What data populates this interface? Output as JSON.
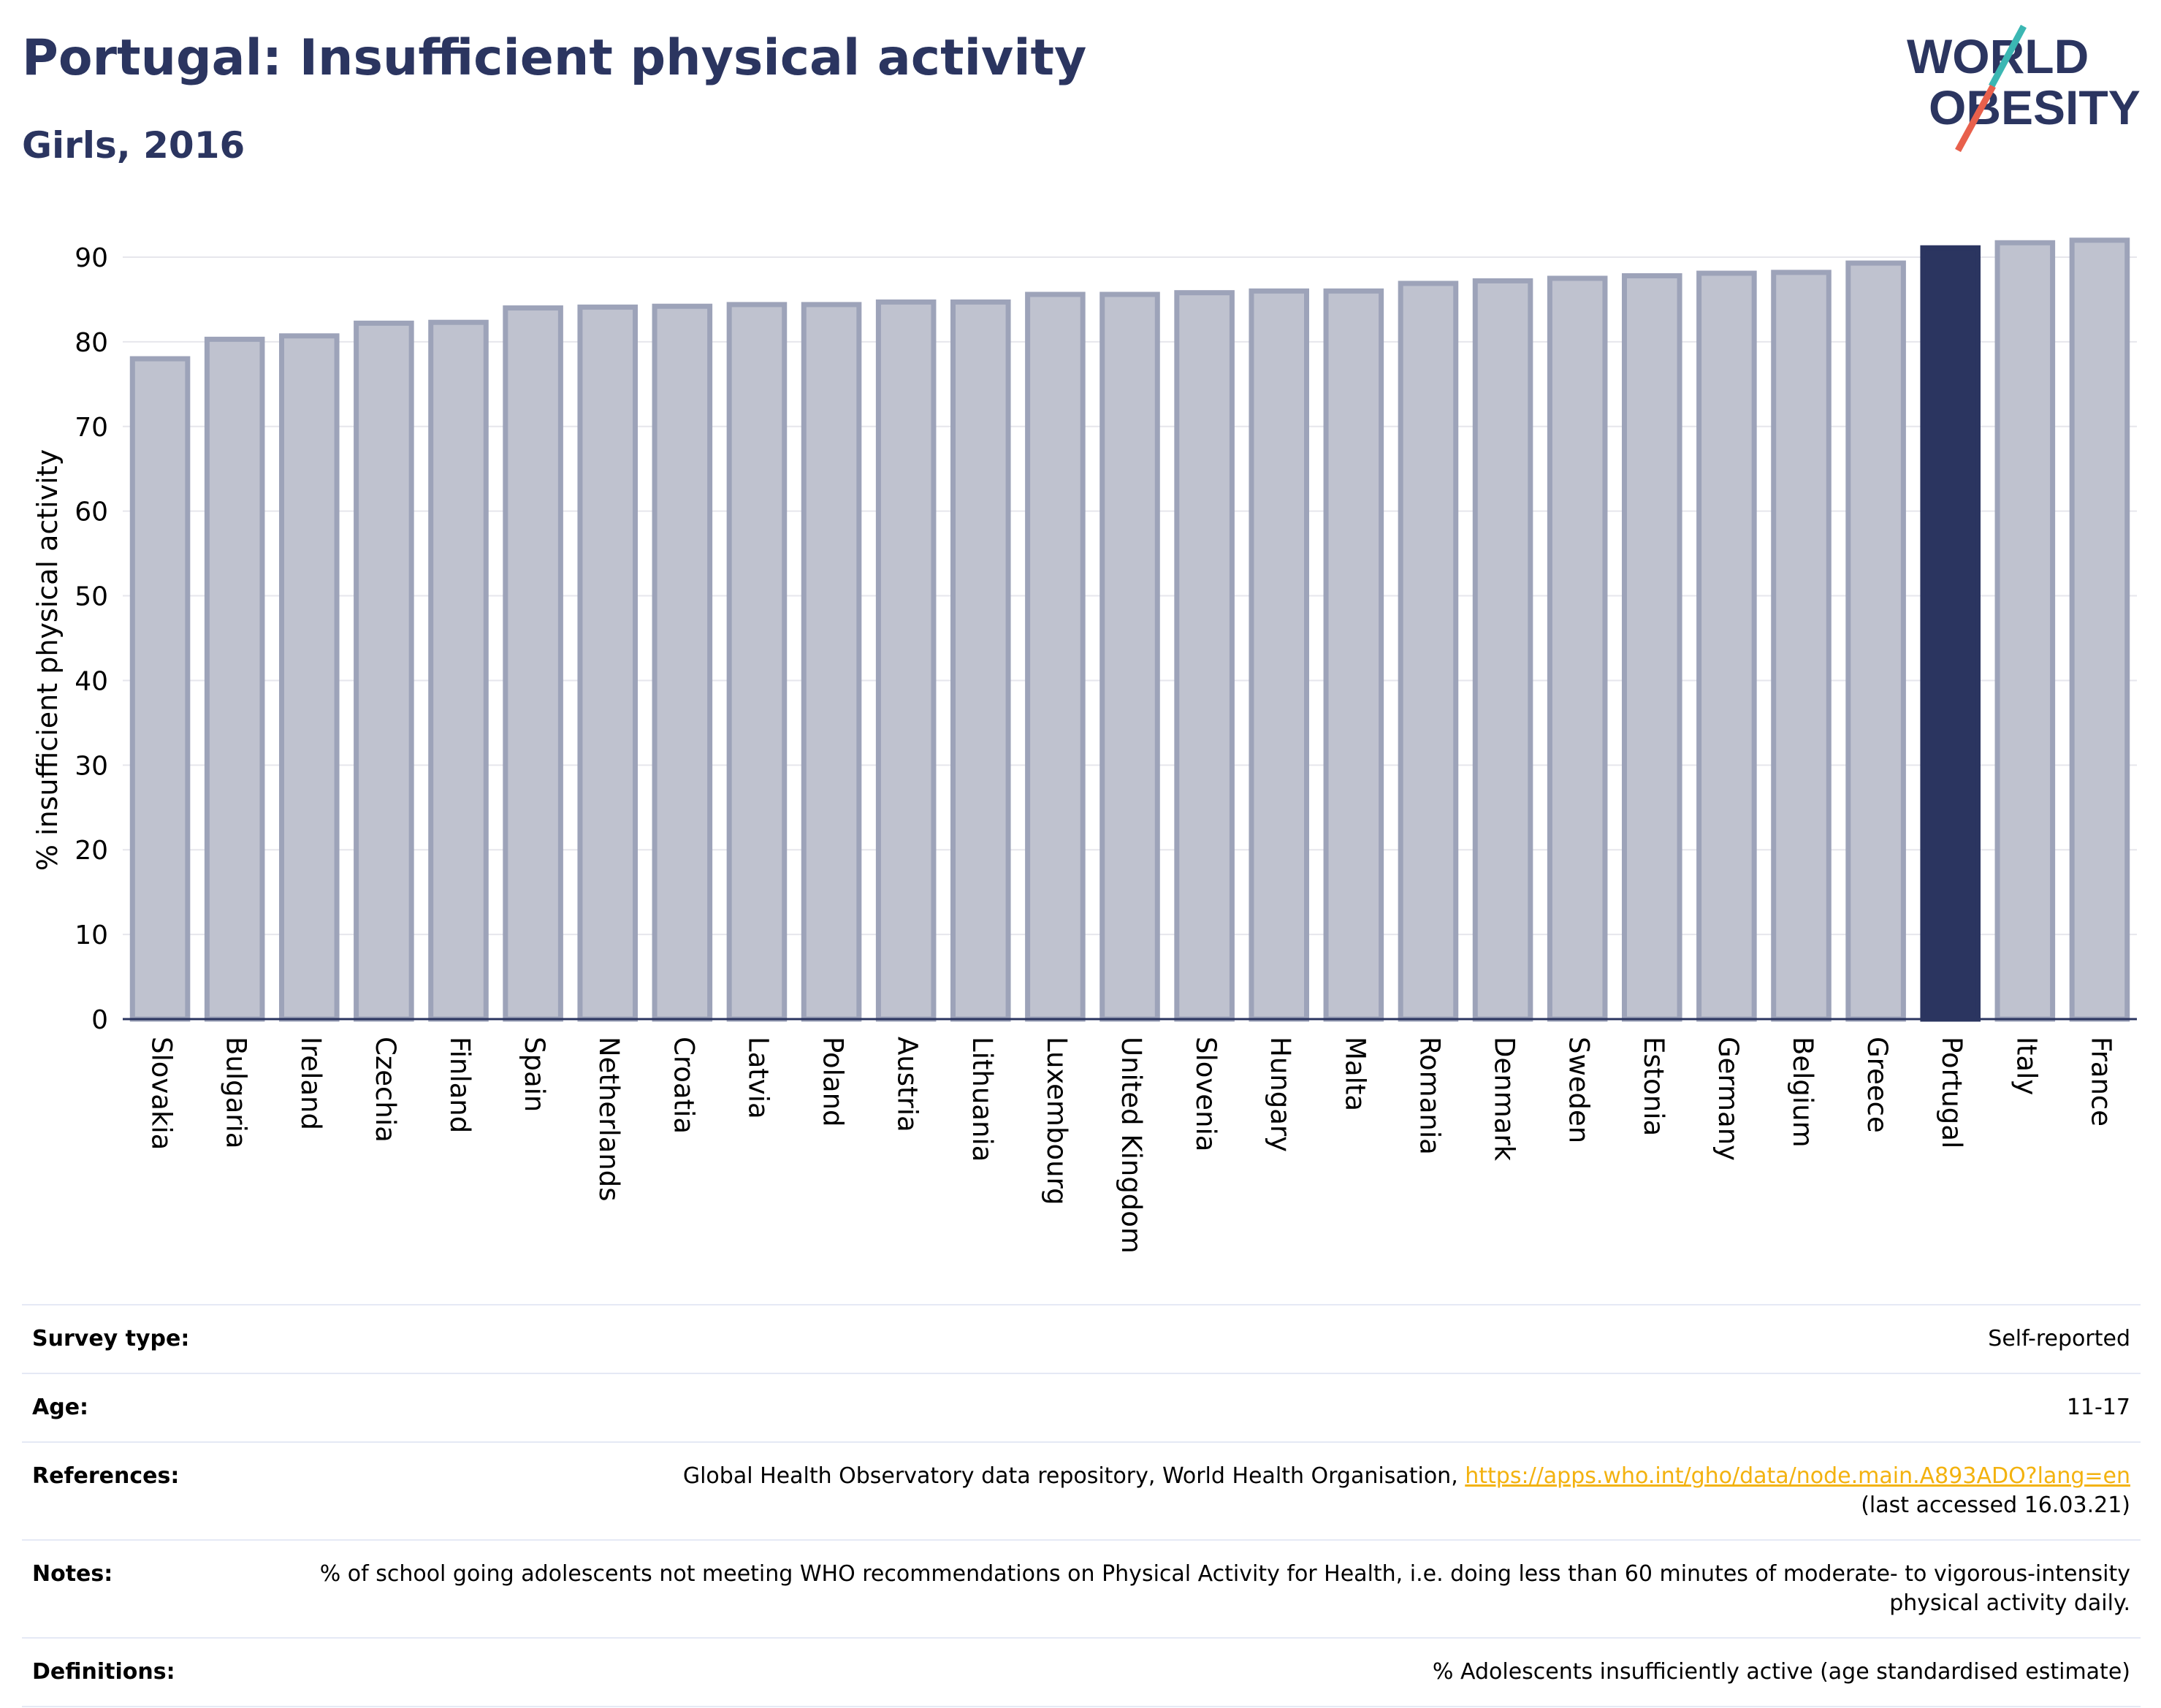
{
  "header": {
    "title": "Portugal: Insufficient physical activity",
    "subtitle": "Girls, 2016"
  },
  "logo": {
    "line1": "WORLD",
    "line2": "OBESITY",
    "colors": {
      "text": "#2b3560",
      "accent_teal": "#3bb7b3",
      "accent_red": "#e8604c"
    }
  },
  "chart_data": {
    "type": "bar",
    "categories": [
      "Slovakia",
      "Bulgaria",
      "Ireland",
      "Czechia",
      "Finland",
      "Spain",
      "Netherlands",
      "Croatia",
      "Latvia",
      "Poland",
      "Austria",
      "Lithuania",
      "Luxembourg",
      "United Kingdom",
      "Slovenia",
      "Hungary",
      "Malta",
      "Romania",
      "Denmark",
      "Sweden",
      "Estonia",
      "Germany",
      "Belgium",
      "Greece",
      "Portugal",
      "Italy",
      "France"
    ],
    "values": [
      78.0,
      80.3,
      80.7,
      82.2,
      82.3,
      84.0,
      84.1,
      84.2,
      84.4,
      84.4,
      84.7,
      84.7,
      85.6,
      85.6,
      85.8,
      86.0,
      86.0,
      86.9,
      87.2,
      87.5,
      87.8,
      88.1,
      88.2,
      89.3,
      91.1,
      91.7,
      92.0
    ],
    "highlight": "Portugal",
    "ylabel": "% insufficient physical activity",
    "xlabel": "",
    "ylim": [
      0,
      90
    ],
    "yticks": [
      0,
      10,
      20,
      30,
      40,
      50,
      60,
      70,
      80,
      90
    ],
    "grid": true,
    "colors": {
      "bar": "#bfc2cf",
      "bar_edge": "#9da3b9",
      "highlight": "#2b3560",
      "grid": "#e6e6ec",
      "axis": "#2b3560"
    }
  },
  "info": {
    "survey_type_label": "Survey type:",
    "survey_type_value": "Self-reported",
    "age_label": "Age:",
    "age_value": "11-17",
    "references_label": "References:",
    "references_text": "Global Health Observatory data repository, World Health Organisation, ",
    "references_link": "https://apps.who.int/gho/data/node.main.A893ADO?lang=en",
    "references_accessed": "(last accessed 16.03.21)",
    "notes_label": "Notes:",
    "notes_value": "% of school going adolescents not meeting WHO recommendations on Physical Activity for Health, i.e. doing less than 60 minutes of moderate- to vigorous-intensity physical activity daily.",
    "definitions_label": "Definitions:",
    "definitions_value": "% Adolescents insufficiently active (age standardised estimate)"
  }
}
